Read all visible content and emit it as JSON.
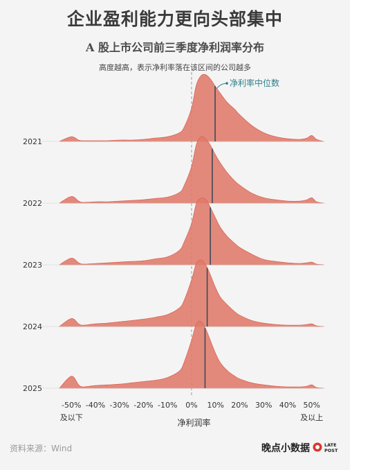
{
  "header": {
    "title": "企业盈利能力更向头部集中",
    "subtitle": "A 股上市公司前三季度净利润率分布",
    "note": "高度越高，表示净利率落在该区间的公司越多"
  },
  "footer": {
    "source": "资料来源：Wind",
    "brand": "晚点小数据",
    "logo_text": "LATEPOST"
  },
  "colors": {
    "fill": "#e07a6a",
    "fill_dark": "#d96656",
    "median": "#3a4a5a",
    "annotation": "#2f7f8a",
    "zero_line": "#9a9a9a"
  },
  "chart_data": {
    "type": "area",
    "subtype": "ridgeline density",
    "xlabel": "净利润率",
    "xlim": [
      -55,
      55
    ],
    "x_ticks": [
      -50,
      -40,
      -30,
      -20,
      -10,
      0,
      10,
      20,
      30,
      40,
      50
    ],
    "x_tick_labels": [
      "-50%",
      "-40%",
      "-30%",
      "-20%",
      "-10%",
      "0%",
      "10%",
      "20%",
      "30%",
      "40%",
      "50%"
    ],
    "x_extra_labels": {
      "left": "及以下",
      "right": "及以上"
    },
    "median_label": "净利率中位数",
    "x": [
      -55,
      -50,
      -47,
      -45,
      -40,
      -35,
      -30,
      -25,
      -20,
      -15,
      -10,
      -5,
      -3,
      0,
      2,
      4,
      6,
      8,
      10,
      12,
      15,
      18,
      20,
      25,
      30,
      35,
      40,
      45,
      48,
      50,
      52,
      55
    ],
    "series": [
      {
        "name": "2021",
        "median": 9.8,
        "values": [
          0,
          0.07,
          0.02,
          0.01,
          0.01,
          0.01,
          0.02,
          0.02,
          0.03,
          0.05,
          0.07,
          0.13,
          0.22,
          0.5,
          0.85,
          0.99,
          1.0,
          0.93,
          0.82,
          0.72,
          0.58,
          0.48,
          0.4,
          0.24,
          0.13,
          0.07,
          0.04,
          0.03,
          0.05,
          0.09,
          0.03,
          0
        ]
      },
      {
        "name": "2022",
        "median": 8.6,
        "values": [
          0,
          0.1,
          0.03,
          0.01,
          0.02,
          0.02,
          0.03,
          0.04,
          0.05,
          0.07,
          0.09,
          0.16,
          0.27,
          0.55,
          0.88,
          1.0,
          0.96,
          0.86,
          0.72,
          0.6,
          0.45,
          0.33,
          0.27,
          0.15,
          0.08,
          0.05,
          0.03,
          0.03,
          0.05,
          0.08,
          0.02,
          0
        ]
      },
      {
        "name": "2023",
        "median": 7.8,
        "values": [
          0,
          0.1,
          0.03,
          0.01,
          0.02,
          0.03,
          0.04,
          0.05,
          0.06,
          0.09,
          0.12,
          0.22,
          0.35,
          0.62,
          0.92,
          1.0,
          0.98,
          0.85,
          0.7,
          0.56,
          0.42,
          0.32,
          0.26,
          0.16,
          0.08,
          0.05,
          0.03,
          0.02,
          0.03,
          0.04,
          0.01,
          0
        ]
      },
      {
        "name": "2024",
        "median": 6.5,
        "values": [
          0,
          0.12,
          0.04,
          0.02,
          0.04,
          0.05,
          0.07,
          0.09,
          0.11,
          0.14,
          0.18,
          0.28,
          0.4,
          0.7,
          0.95,
          1.0,
          0.92,
          0.76,
          0.58,
          0.44,
          0.32,
          0.22,
          0.17,
          0.09,
          0.05,
          0.03,
          0.02,
          0.02,
          0.03,
          0.04,
          0.01,
          0
        ]
      },
      {
        "name": "2025",
        "median": 5.6,
        "values": [
          0,
          0.18,
          0.05,
          0.02,
          0.04,
          0.05,
          0.06,
          0.08,
          0.1,
          0.12,
          0.16,
          0.26,
          0.4,
          0.72,
          0.97,
          1.0,
          0.88,
          0.7,
          0.52,
          0.38,
          0.26,
          0.18,
          0.14,
          0.08,
          0.05,
          0.03,
          0.02,
          0.02,
          0.03,
          0.05,
          0.01,
          0
        ]
      }
    ]
  }
}
